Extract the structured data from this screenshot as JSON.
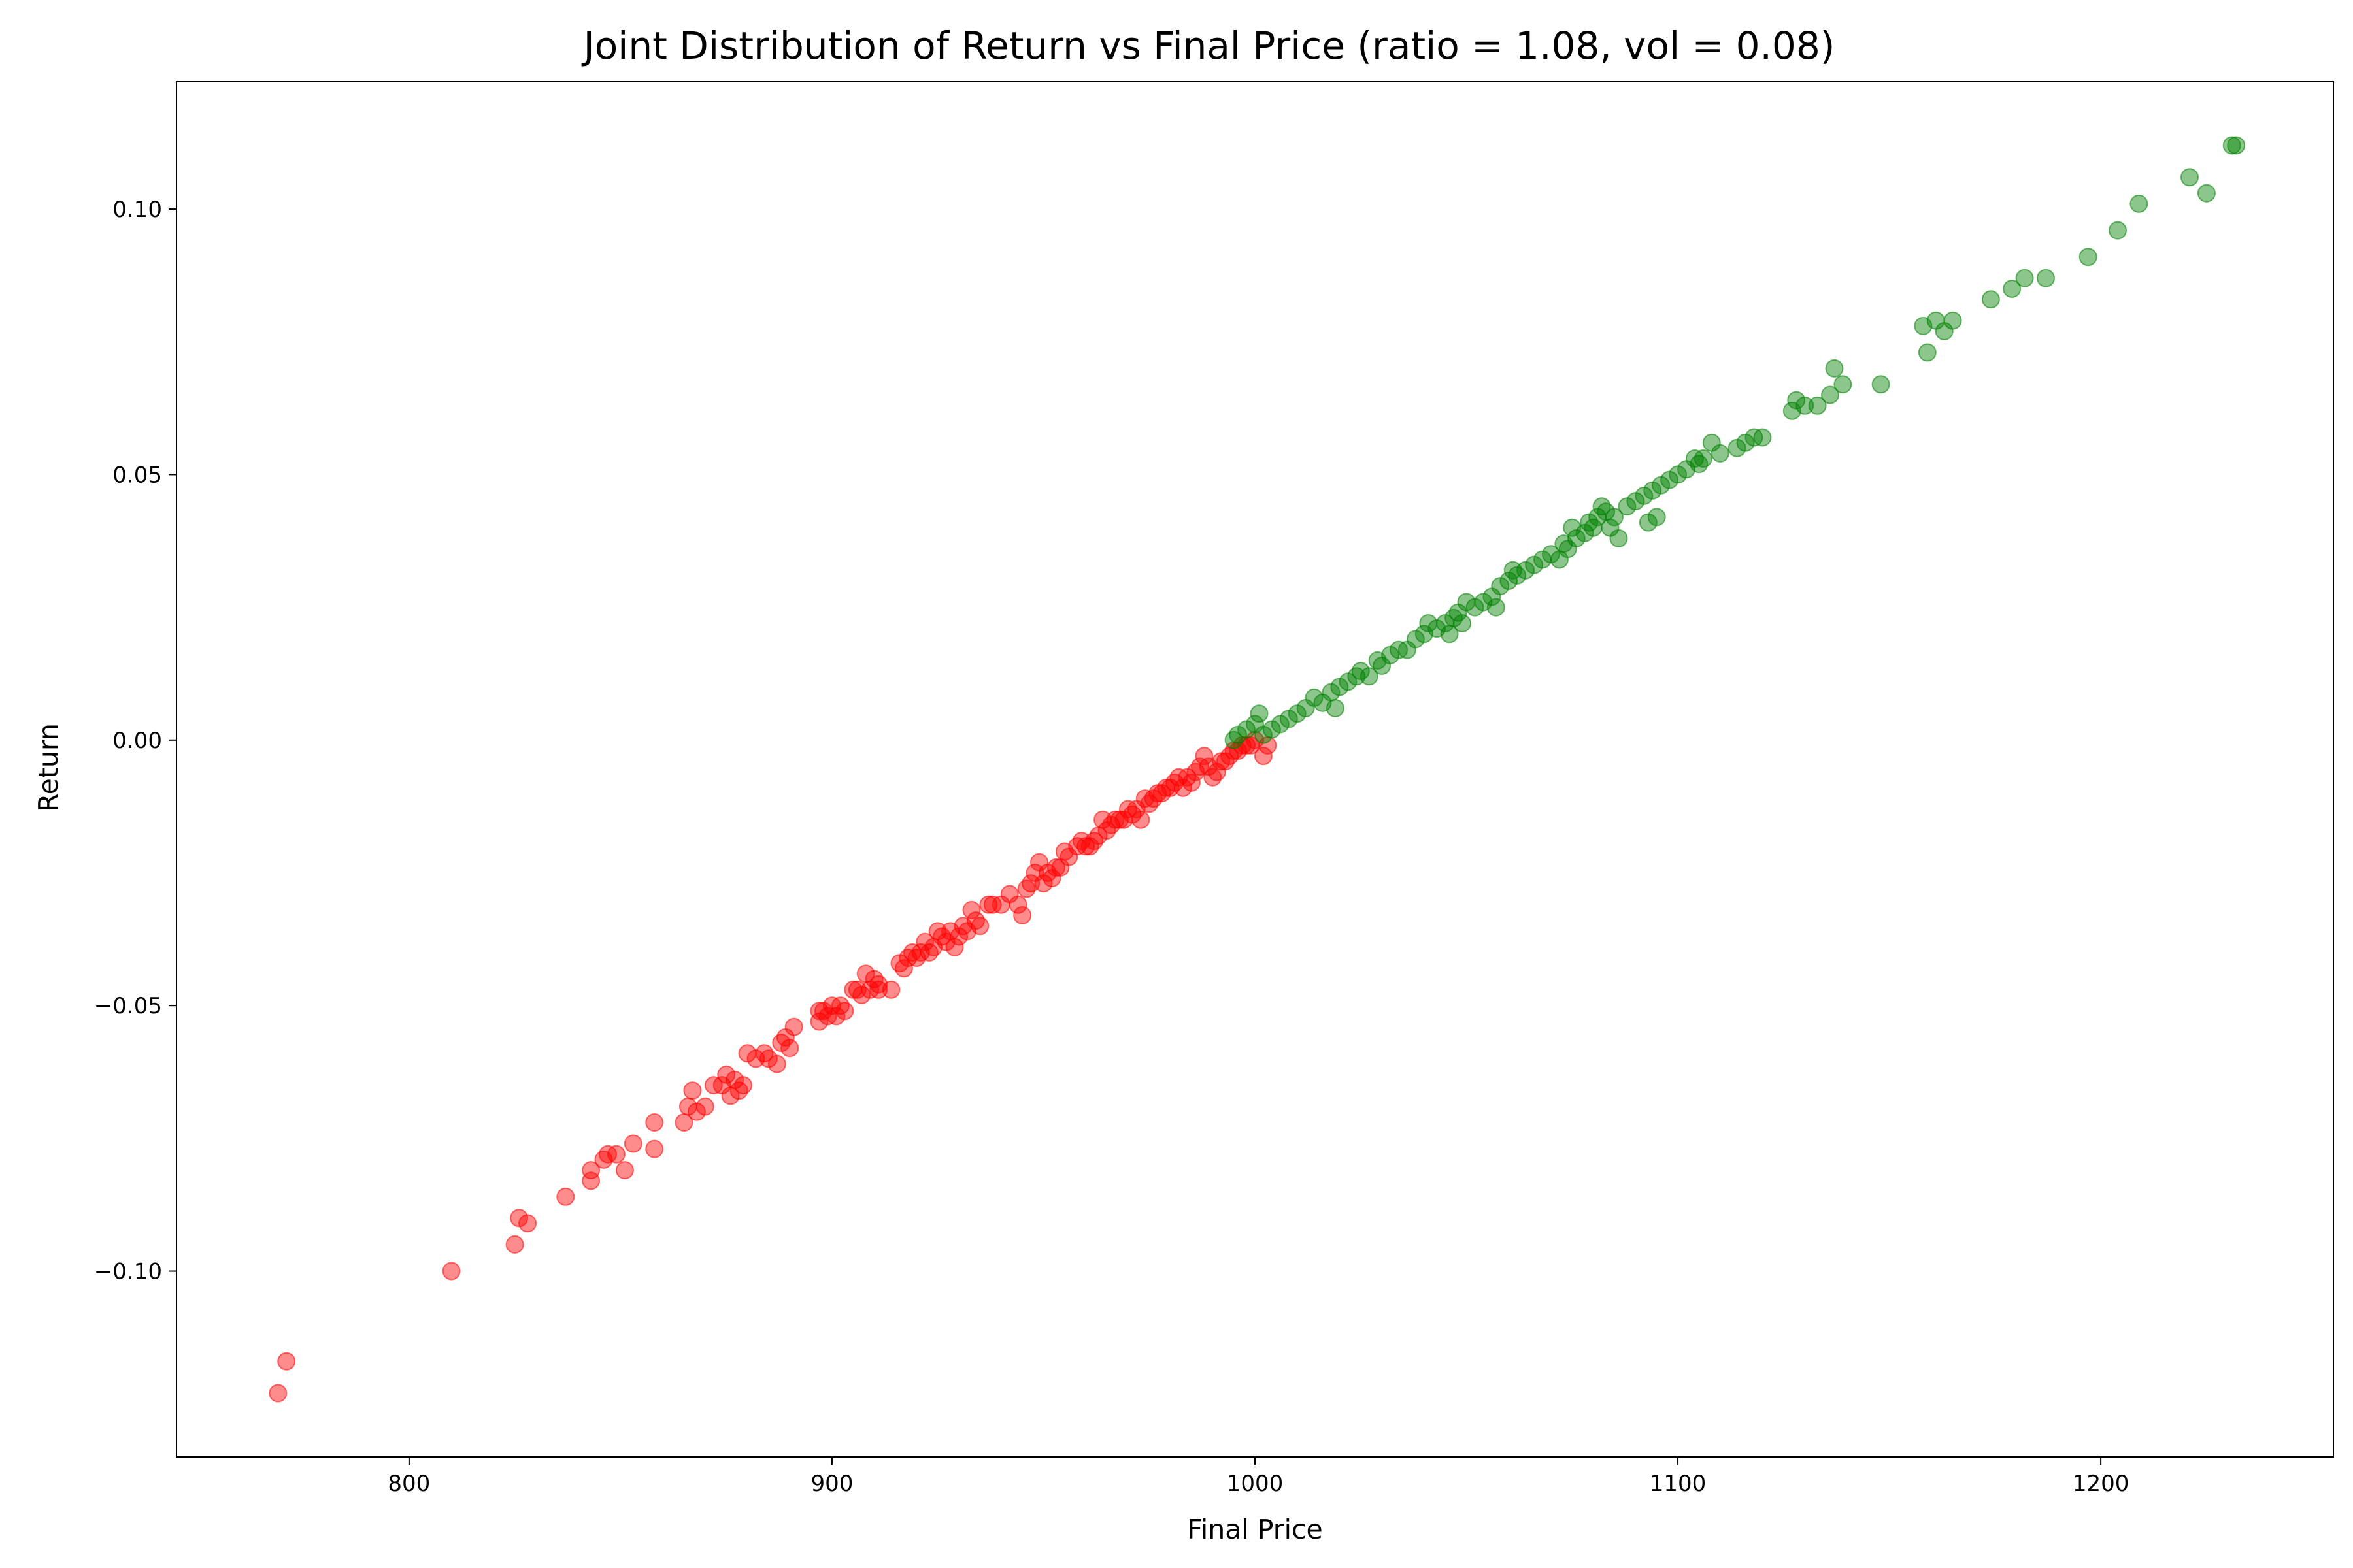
{
  "chart_data": {
    "type": "scatter",
    "title": "Joint Distribution of Return vs Final Price (ratio = 1.08, vol = 0.08)",
    "xlabel": "Final Price",
    "ylabel": "Return",
    "xlim": [
      745,
      1255
    ],
    "ylim": [
      -0.135,
      0.124
    ],
    "xticks": [
      {
        "value": 800,
        "label": "800"
      },
      {
        "value": 900,
        "label": "900"
      },
      {
        "value": 1000,
        "label": "1000"
      },
      {
        "value": 1100,
        "label": "1100"
      },
      {
        "value": 1200,
        "label": "1200"
      }
    ],
    "yticks": [
      {
        "value": 0.1,
        "label": "0.10"
      },
      {
        "value": 0.05,
        "label": "0.05"
      },
      {
        "value": 0.0,
        "label": "0.00"
      },
      {
        "value": -0.05,
        "label": "−0.05"
      },
      {
        "value": -0.1,
        "label": "−0.10"
      }
    ],
    "grid": false,
    "colors": {
      "negative": "#ff0000",
      "positive": "#008000",
      "axes": "#000000"
    },
    "marker_alpha": 0.45,
    "series": [
      {
        "color": "#ff0000",
        "points": [
          [
            769,
            -0.123
          ],
          [
            771,
            -0.117
          ],
          [
            810,
            -0.1
          ],
          [
            825,
            -0.095
          ],
          [
            826,
            -0.09
          ],
          [
            828,
            -0.091
          ],
          [
            837,
            -0.086
          ],
          [
            843,
            -0.081
          ],
          [
            843,
            -0.083
          ],
          [
            846,
            -0.079
          ],
          [
            847,
            -0.078
          ],
          [
            849,
            -0.078
          ],
          [
            851,
            -0.081
          ],
          [
            853,
            -0.076
          ],
          [
            858,
            -0.072
          ],
          [
            858,
            -0.077
          ],
          [
            865,
            -0.072
          ],
          [
            866,
            -0.069
          ],
          [
            867,
            -0.066
          ],
          [
            868,
            -0.07
          ],
          [
            870,
            -0.069
          ],
          [
            872,
            -0.065
          ],
          [
            874,
            -0.065
          ],
          [
            875,
            -0.063
          ],
          [
            876,
            -0.067
          ],
          [
            877,
            -0.064
          ],
          [
            878,
            -0.066
          ],
          [
            879,
            -0.065
          ],
          [
            880,
            -0.059
          ],
          [
            882,
            -0.06
          ],
          [
            884,
            -0.059
          ],
          [
            885,
            -0.06
          ],
          [
            887,
            -0.061
          ],
          [
            888,
            -0.057
          ],
          [
            889,
            -0.056
          ],
          [
            890,
            -0.058
          ],
          [
            891,
            -0.054
          ],
          [
            897,
            -0.053
          ],
          [
            897,
            -0.051
          ],
          [
            898,
            -0.051
          ],
          [
            899,
            -0.052
          ],
          [
            900,
            -0.05
          ],
          [
            901,
            -0.052
          ],
          [
            902,
            -0.05
          ],
          [
            903,
            -0.051
          ],
          [
            905,
            -0.047
          ],
          [
            906,
            -0.047
          ],
          [
            907,
            -0.048
          ],
          [
            908,
            -0.044
          ],
          [
            909,
            -0.047
          ],
          [
            910,
            -0.045
          ],
          [
            911,
            -0.046
          ],
          [
            911,
            -0.047
          ],
          [
            914,
            -0.047
          ],
          [
            916,
            -0.042
          ],
          [
            917,
            -0.043
          ],
          [
            918,
            -0.041
          ],
          [
            919,
            -0.04
          ],
          [
            920,
            -0.041
          ],
          [
            921,
            -0.04
          ],
          [
            922,
            -0.038
          ],
          [
            923,
            -0.04
          ],
          [
            924,
            -0.039
          ],
          [
            925,
            -0.036
          ],
          [
            926,
            -0.037
          ],
          [
            927,
            -0.038
          ],
          [
            928,
            -0.036
          ],
          [
            929,
            -0.039
          ],
          [
            930,
            -0.037
          ],
          [
            931,
            -0.035
          ],
          [
            932,
            -0.036
          ],
          [
            933,
            -0.032
          ],
          [
            934,
            -0.034
          ],
          [
            935,
            -0.035
          ],
          [
            937,
            -0.031
          ],
          [
            938,
            -0.031
          ],
          [
            940,
            -0.031
          ],
          [
            942,
            -0.029
          ],
          [
            944,
            -0.031
          ],
          [
            945,
            -0.033
          ],
          [
            946,
            -0.028
          ],
          [
            947,
            -0.027
          ],
          [
            948,
            -0.025
          ],
          [
            949,
            -0.023
          ],
          [
            950,
            -0.027
          ],
          [
            951,
            -0.025
          ],
          [
            952,
            -0.026
          ],
          [
            953,
            -0.024
          ],
          [
            954,
            -0.024
          ],
          [
            955,
            -0.021
          ],
          [
            956,
            -0.022
          ],
          [
            958,
            -0.02
          ],
          [
            959,
            -0.019
          ],
          [
            960,
            -0.02
          ],
          [
            961,
            -0.02
          ],
          [
            962,
            -0.019
          ],
          [
            963,
            -0.018
          ],
          [
            964,
            -0.015
          ],
          [
            965,
            -0.017
          ],
          [
            966,
            -0.016
          ],
          [
            967,
            -0.015
          ],
          [
            968,
            -0.015
          ],
          [
            969,
            -0.015
          ],
          [
            970,
            -0.013
          ],
          [
            971,
            -0.014
          ],
          [
            972,
            -0.013
          ],
          [
            973,
            -0.015
          ],
          [
            974,
            -0.011
          ],
          [
            975,
            -0.012
          ],
          [
            976,
            -0.011
          ],
          [
            977,
            -0.01
          ],
          [
            978,
            -0.01
          ],
          [
            979,
            -0.009
          ],
          [
            980,
            -0.009
          ],
          [
            981,
            -0.008
          ],
          [
            982,
            -0.007
          ],
          [
            983,
            -0.009
          ],
          [
            984,
            -0.007
          ],
          [
            985,
            -0.008
          ],
          [
            986,
            -0.006
          ],
          [
            987,
            -0.005
          ],
          [
            988,
            -0.003
          ],
          [
            989,
            -0.005
          ],
          [
            990,
            -0.007
          ],
          [
            991,
            -0.006
          ],
          [
            992,
            -0.004
          ],
          [
            993,
            -0.004
          ],
          [
            994,
            -0.003
          ],
          [
            995,
            -0.002
          ],
          [
            996,
            -0.002
          ],
          [
            997,
            -0.001
          ],
          [
            998,
            -0.001
          ],
          [
            999,
            -0.001
          ],
          [
            1000,
            0.0
          ],
          [
            1002,
            -0.003
          ],
          [
            1003,
            -0.001
          ]
        ]
      },
      {
        "color": "#008000",
        "points": [
          [
            995,
            0.0
          ],
          [
            996,
            0.001
          ],
          [
            998,
            0.002
          ],
          [
            1000,
            0.003
          ],
          [
            1001,
            0.005
          ],
          [
            1002,
            0.001
          ],
          [
            1004,
            0.002
          ],
          [
            1006,
            0.003
          ],
          [
            1008,
            0.004
          ],
          [
            1010,
            0.005
          ],
          [
            1012,
            0.006
          ],
          [
            1014,
            0.008
          ],
          [
            1016,
            0.007
          ],
          [
            1018,
            0.009
          ],
          [
            1019,
            0.006
          ],
          [
            1020,
            0.01
          ],
          [
            1022,
            0.011
          ],
          [
            1024,
            0.012
          ],
          [
            1025,
            0.013
          ],
          [
            1027,
            0.012
          ],
          [
            1029,
            0.015
          ],
          [
            1030,
            0.014
          ],
          [
            1032,
            0.016
          ],
          [
            1034,
            0.017
          ],
          [
            1036,
            0.017
          ],
          [
            1038,
            0.019
          ],
          [
            1040,
            0.02
          ],
          [
            1041,
            0.022
          ],
          [
            1043,
            0.021
          ],
          [
            1045,
            0.022
          ],
          [
            1046,
            0.02
          ],
          [
            1047,
            0.023
          ],
          [
            1048,
            0.024
          ],
          [
            1049,
            0.022
          ],
          [
            1050,
            0.026
          ],
          [
            1052,
            0.025
          ],
          [
            1054,
            0.026
          ],
          [
            1056,
            0.027
          ],
          [
            1057,
            0.025
          ],
          [
            1058,
            0.029
          ],
          [
            1060,
            0.03
          ],
          [
            1061,
            0.032
          ],
          [
            1062,
            0.031
          ],
          [
            1064,
            0.032
          ],
          [
            1066,
            0.033
          ],
          [
            1068,
            0.034
          ],
          [
            1070,
            0.035
          ],
          [
            1072,
            0.034
          ],
          [
            1073,
            0.037
          ],
          [
            1074,
            0.036
          ],
          [
            1075,
            0.04
          ],
          [
            1076,
            0.038
          ],
          [
            1078,
            0.039
          ],
          [
            1079,
            0.041
          ],
          [
            1080,
            0.04
          ],
          [
            1081,
            0.042
          ],
          [
            1082,
            0.044
          ],
          [
            1083,
            0.043
          ],
          [
            1084,
            0.04
          ],
          [
            1085,
            0.042
          ],
          [
            1086,
            0.038
          ],
          [
            1088,
            0.044
          ],
          [
            1090,
            0.045
          ],
          [
            1092,
            0.046
          ],
          [
            1093,
            0.041
          ],
          [
            1094,
            0.047
          ],
          [
            1095,
            0.042
          ],
          [
            1096,
            0.048
          ],
          [
            1098,
            0.049
          ],
          [
            1100,
            0.05
          ],
          [
            1102,
            0.051
          ],
          [
            1104,
            0.053
          ],
          [
            1105,
            0.052
          ],
          [
            1106,
            0.053
          ],
          [
            1108,
            0.056
          ],
          [
            1110,
            0.054
          ],
          [
            1114,
            0.055
          ],
          [
            1116,
            0.056
          ],
          [
            1118,
            0.057
          ],
          [
            1120,
            0.057
          ],
          [
            1127,
            0.062
          ],
          [
            1128,
            0.064
          ],
          [
            1130,
            0.063
          ],
          [
            1133,
            0.063
          ],
          [
            1136,
            0.065
          ],
          [
            1137,
            0.07
          ],
          [
            1139,
            0.067
          ],
          [
            1148,
            0.067
          ],
          [
            1158,
            0.078
          ],
          [
            1159,
            0.073
          ],
          [
            1161,
            0.079
          ],
          [
            1163,
            0.077
          ],
          [
            1165,
            0.079
          ],
          [
            1174,
            0.083
          ],
          [
            1179,
            0.085
          ],
          [
            1182,
            0.087
          ],
          [
            1187,
            0.087
          ],
          [
            1197,
            0.091
          ],
          [
            1204,
            0.096
          ],
          [
            1209,
            0.101
          ],
          [
            1221,
            0.106
          ],
          [
            1225,
            0.103
          ],
          [
            1231,
            0.112
          ],
          [
            1232,
            0.112
          ]
        ]
      }
    ]
  }
}
